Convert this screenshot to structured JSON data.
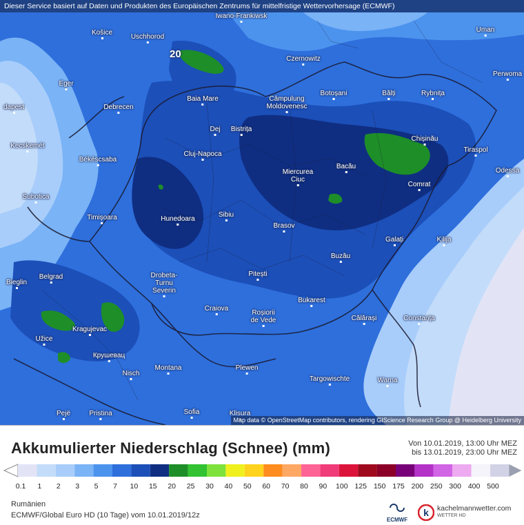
{
  "map": {
    "disclaimer": "Dieser Service basiert auf Daten und Produkten des Europäischen Zentrums für mittelfristige Wettervorhersage (ECMWF)",
    "attribution": "Map data © OpenStreetMap contributors, rendering GIScience Research Group @ Heidelberg University",
    "max_value": "20",
    "cities": [
      {
        "name": "Iwano-Frankiwsk"
      },
      {
        "name": "Košice"
      },
      {
        "name": "Uschhorod"
      },
      {
        "name": "Uman"
      },
      {
        "name": "Czernowitz"
      },
      {
        "name": "Perwoma"
      },
      {
        "name": "Eger"
      },
      {
        "name": "Baia Mare"
      },
      {
        "name": "Câmpulung\nMoldovenesc"
      },
      {
        "name": "Botoșani"
      },
      {
        "name": "Bălți"
      },
      {
        "name": "Rybnița"
      },
      {
        "name": "dapest"
      },
      {
        "name": "Debrecen"
      },
      {
        "name": "Dej"
      },
      {
        "name": "Bistrița"
      },
      {
        "name": "Chișinău"
      },
      {
        "name": "Kecskemét"
      },
      {
        "name": "Cluj-Napoca"
      },
      {
        "name": "Tiraspol"
      },
      {
        "name": "Békéscsaba"
      },
      {
        "name": "Miercurea\nCiuc"
      },
      {
        "name": "Bacău"
      },
      {
        "name": "Odessa"
      },
      {
        "name": "Subotica"
      },
      {
        "name": "Comrat"
      },
      {
        "name": "Timișoara"
      },
      {
        "name": "Hunedoara"
      },
      {
        "name": "Sibiu"
      },
      {
        "name": "Brasov"
      },
      {
        "name": "Galați"
      },
      {
        "name": "Kilija"
      },
      {
        "name": "Buzău"
      },
      {
        "name": "Belgrad"
      },
      {
        "name": "Drobeta-\nTurnu\nSeverin"
      },
      {
        "name": "Pitești"
      },
      {
        "name": "Bieglin"
      },
      {
        "name": "Bukarest"
      },
      {
        "name": "Craiova"
      },
      {
        "name": "Roșiorii\nde Vede"
      },
      {
        "name": "Kragujevac"
      },
      {
        "name": "Călărași"
      },
      {
        "name": "Constanța"
      },
      {
        "name": "Užice"
      },
      {
        "name": "Крушевац"
      },
      {
        "name": "Nisch"
      },
      {
        "name": "Montana"
      },
      {
        "name": "Plewen"
      },
      {
        "name": "Targowischte"
      },
      {
        "name": "Warna"
      },
      {
        "name": "Pejë"
      },
      {
        "name": "Pristina"
      },
      {
        "name": "Sofia"
      },
      {
        "name": "Klisura"
      }
    ]
  },
  "legend": {
    "title": "Akkumulierter Niederschlag (Schnee) (mm)",
    "period_from": "Von 10.01.2019, 13:00 Uhr MEZ",
    "period_to": "bis 13.01.2019, 23:00 Uhr MEZ",
    "scale": [
      {
        "value": "0.1",
        "color": "#e2e4f6"
      },
      {
        "value": "1",
        "color": "#c3dcfa"
      },
      {
        "value": "2",
        "color": "#a8cdfa"
      },
      {
        "value": "3",
        "color": "#7ab3f6"
      },
      {
        "value": "5",
        "color": "#4c93ee"
      },
      {
        "value": "7",
        "color": "#2e6fdc"
      },
      {
        "value": "10",
        "color": "#1c4fb8"
      },
      {
        "value": "15",
        "color": "#0f2e82"
      },
      {
        "value": "20",
        "color": "#1e8e28"
      },
      {
        "value": "25",
        "color": "#32c232"
      },
      {
        "value": "30",
        "color": "#7ee13c"
      },
      {
        "value": "40",
        "color": "#f0f01e"
      },
      {
        "value": "50",
        "color": "#ffd21e"
      },
      {
        "value": "60",
        "color": "#ff8c1e"
      },
      {
        "value": "70",
        "color": "#ffa864"
      },
      {
        "value": "80",
        "color": "#ff6496"
      },
      {
        "value": "90",
        "color": "#f03c78"
      },
      {
        "value": "100",
        "color": "#dc143c"
      },
      {
        "value": "125",
        "color": "#a00a1e"
      },
      {
        "value": "150",
        "color": "#8c0028"
      },
      {
        "value": "175",
        "color": "#780078"
      },
      {
        "value": "200",
        "color": "#b432c8"
      },
      {
        "value": "250",
        "color": "#d264e6"
      },
      {
        "value": "300",
        "color": "#eeaaf0"
      },
      {
        "value": "400",
        "color": "#f4f4fa"
      },
      {
        "value": "500",
        "color": "#d2d2e6"
      }
    ],
    "region": "Rumänien",
    "model_line": "ECMWF/Global Euro HD (10 Tage) vom 10.01.2019/12z",
    "ecmwf_logo": "ECMWF",
    "brand_url": "kachelmannwetter.com",
    "brand_sub": "WETTER HD"
  }
}
